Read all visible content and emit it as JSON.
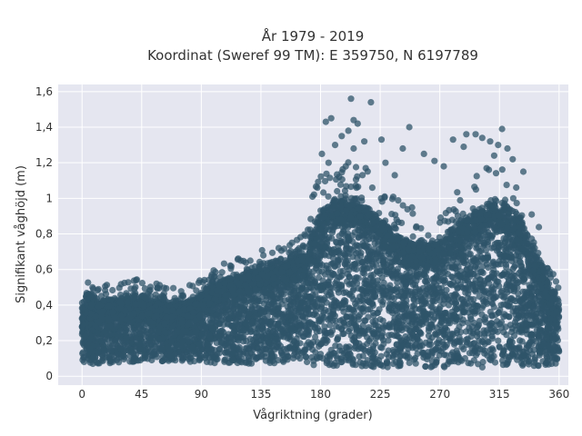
{
  "chart_data": {
    "type": "scatter",
    "title_line1": "År 1979 - 2019",
    "title_line2": "Koordinat (Sweref 99 TM): E 359750, N 6197789",
    "xlabel": "Vågriktning (grader)",
    "ylabel": "Signifikant våghöjd (m)",
    "xlim": [
      -18,
      367
    ],
    "ylim": [
      -0.05,
      1.64
    ],
    "x_ticks": [
      0,
      45,
      90,
      135,
      180,
      225,
      270,
      315,
      360
    ],
    "x_tick_labels": [
      "0",
      "45",
      "90",
      "135",
      "180",
      "225",
      "270",
      "315",
      "360"
    ],
    "y_ticks": [
      0,
      0.2,
      0.4,
      0.6,
      0.8,
      1.0,
      1.2,
      1.4,
      1.6
    ],
    "y_tick_labels": [
      "0",
      "0,2",
      "0,4",
      "0,6",
      "0,8",
      "1",
      "1,2",
      "1,4",
      "1,6"
    ],
    "grid": true,
    "marker_color": "#2f5469",
    "plot_bg_color": "#e5e6f0",
    "envelope": {
      "x": [
        0,
        3,
        10,
        20,
        30,
        40,
        50,
        60,
        70,
        80,
        90,
        100,
        110,
        120,
        130,
        140,
        150,
        160,
        170,
        175,
        180,
        190,
        200,
        210,
        220,
        230,
        240,
        250,
        260,
        270,
        280,
        290,
        300,
        310,
        320,
        330,
        340,
        350,
        360
      ],
      "y_min": [
        0.08,
        0.06,
        0.07,
        0.07,
        0.08,
        0.08,
        0.08,
        0.08,
        0.08,
        0.08,
        0.08,
        0.07,
        0.07,
        0.07,
        0.07,
        0.07,
        0.07,
        0.07,
        0.06,
        0.06,
        0.05,
        0.05,
        0.05,
        0.05,
        0.05,
        0.05,
        0.05,
        0.05,
        0.05,
        0.05,
        0.05,
        0.05,
        0.05,
        0.05,
        0.05,
        0.05,
        0.05,
        0.06,
        0.07
      ],
      "y_max": [
        0.38,
        0.47,
        0.42,
        0.42,
        0.44,
        0.45,
        0.43,
        0.42,
        0.41,
        0.42,
        0.46,
        0.52,
        0.55,
        0.57,
        0.6,
        0.62,
        0.64,
        0.66,
        0.72,
        0.82,
        0.92,
        0.98,
        0.99,
        0.97,
        0.92,
        0.85,
        0.78,
        0.74,
        0.74,
        0.76,
        0.82,
        0.88,
        0.93,
        0.97,
        0.96,
        0.88,
        0.72,
        0.55,
        0.42
      ]
    },
    "outliers": [
      {
        "x": 203,
        "y": 1.56
      },
      {
        "x": 218,
        "y": 1.54
      },
      {
        "x": 188,
        "y": 1.45
      },
      {
        "x": 184,
        "y": 1.43
      },
      {
        "x": 205,
        "y": 1.44
      },
      {
        "x": 208,
        "y": 1.42
      },
      {
        "x": 201,
        "y": 1.38
      },
      {
        "x": 196,
        "y": 1.35
      },
      {
        "x": 213,
        "y": 1.32
      },
      {
        "x": 191,
        "y": 1.3
      },
      {
        "x": 205,
        "y": 1.28
      },
      {
        "x": 181,
        "y": 1.25
      },
      {
        "x": 226,
        "y": 1.33
      },
      {
        "x": 247,
        "y": 1.4
      },
      {
        "x": 258,
        "y": 1.25
      },
      {
        "x": 242,
        "y": 1.28
      },
      {
        "x": 290,
        "y": 1.36
      },
      {
        "x": 297,
        "y": 1.36
      },
      {
        "x": 302,
        "y": 1.34
      },
      {
        "x": 308,
        "y": 1.32
      },
      {
        "x": 280,
        "y": 1.33
      },
      {
        "x": 317,
        "y": 1.39
      },
      {
        "x": 321,
        "y": 1.28
      },
      {
        "x": 311,
        "y": 1.24
      },
      {
        "x": 325,
        "y": 1.22
      },
      {
        "x": 314,
        "y": 1.3
      },
      {
        "x": 266,
        "y": 1.21
      },
      {
        "x": 273,
        "y": 1.18
      },
      {
        "x": 288,
        "y": 1.29
      },
      {
        "x": 333,
        "y": 1.15
      },
      {
        "x": 229,
        "y": 1.2
      },
      {
        "x": 236,
        "y": 1.13
      },
      {
        "x": 199,
        "y": 1.18
      },
      {
        "x": 186,
        "y": 1.2
      },
      {
        "x": 194,
        "y": 1.12
      },
      {
        "x": 214,
        "y": 1.17
      }
    ]
  }
}
